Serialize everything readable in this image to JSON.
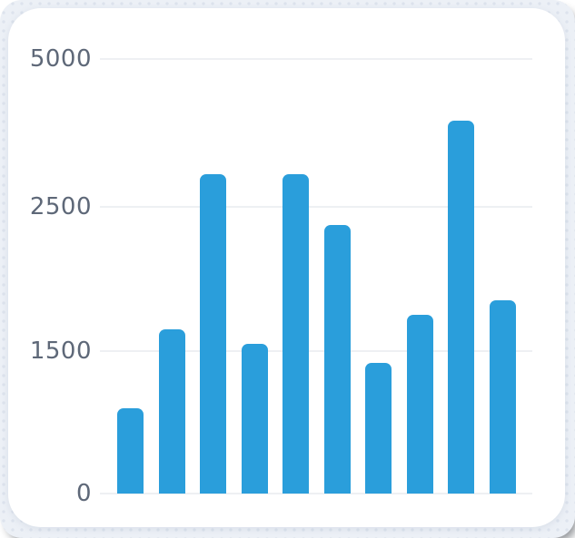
{
  "frame": {
    "background": "#ecf0f6",
    "dot_color": "#dde3ed",
    "card_background": "#ffffff"
  },
  "chart_data": {
    "type": "bar",
    "title": "",
    "xlabel": "",
    "ylabel": "",
    "grid": true,
    "legend": false,
    "bar_color": "#2a9edb",
    "gridline_color": "#eef0f3",
    "tick_label_color": "#5e6878",
    "ylim": [
      0,
      5000
    ],
    "yticks": [
      {
        "label": "0",
        "value": 0,
        "axis_frac": 0
      },
      {
        "label": "1500",
        "value": 1500,
        "axis_frac": 0.328
      },
      {
        "label": "2500",
        "value": 2500,
        "axis_frac": 0.66
      },
      {
        "label": "5000",
        "value": 5000,
        "axis_frac": 1
      }
    ],
    "values": [
      900,
      1650,
      3050,
      1550,
      3050,
      2375,
      1375,
      1750,
      3950,
      1850
    ]
  }
}
